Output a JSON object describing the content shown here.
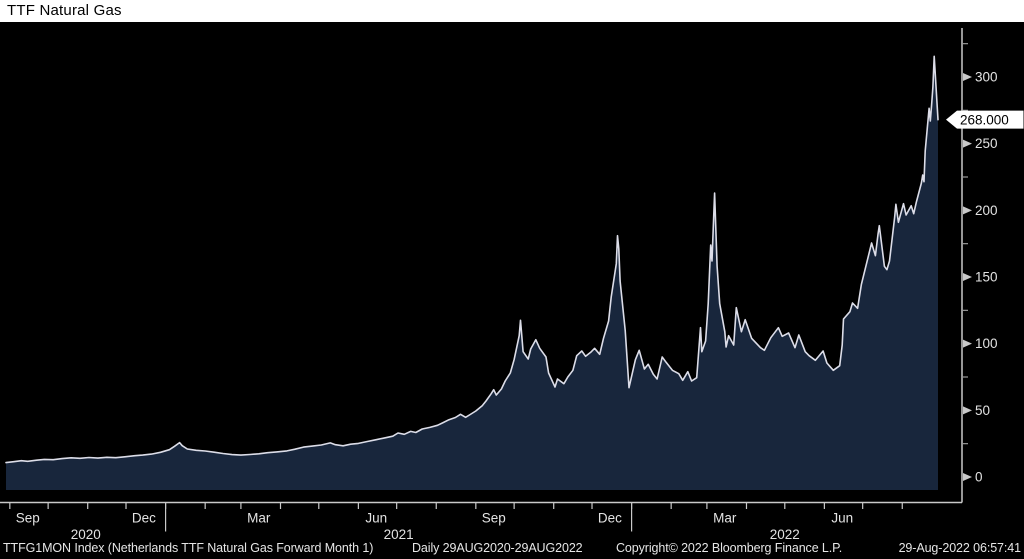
{
  "title": "TTF Natural Gas",
  "footer": {
    "left": "TTFG1MON Index (Netherlands TTF Natural Gas Forward Month 1)",
    "range": "Daily 29AUG2020-29AUG2022",
    "copyright": "Copyright© 2022 Bloomberg Finance L.P.",
    "timestamp": "29-Aug-2022 06:57:41"
  },
  "last_price": {
    "text": "268.000",
    "value": 268.0
  },
  "colors": {
    "background": "#000000",
    "title_bar_bg": "#ffffff",
    "title_text": "#000000",
    "area_fill": "#18263c",
    "line": "#dcdde8",
    "axis": "#c9c9c9",
    "minor_tick": "#9a9a9a",
    "tick_text": "#e2e2e2",
    "price_tag_bg": "#ffffff",
    "price_tag_text": "#000000"
  },
  "chart_data": {
    "type": "area",
    "title": "TTF Natural Gas",
    "x_range": [
      "2020-08-29",
      "2022-08-29"
    ],
    "ylim": [
      -10,
      335
    ],
    "yticks": [
      0,
      50,
      100,
      150,
      200,
      250,
      300
    ],
    "y_minor_ticks": [
      25,
      75,
      125,
      175,
      225,
      275,
      325
    ],
    "grid": false,
    "legend": "none",
    "axis_position": "right",
    "x_axis": {
      "month_labels": [
        {
          "at": "2020-09-15",
          "text": "Sep"
        },
        {
          "at": "2020-12-15",
          "text": "Dec"
        },
        {
          "at": "2021-03-15",
          "text": "Mar"
        },
        {
          "at": "2021-06-15",
          "text": "Jun"
        },
        {
          "at": "2021-09-15",
          "text": "Sep"
        },
        {
          "at": "2021-12-15",
          "text": "Dec"
        },
        {
          "at": "2022-03-15",
          "text": "Mar"
        },
        {
          "at": "2022-06-15",
          "text": "Jun"
        }
      ],
      "year_labels": [
        {
          "between": [
            "2020-08-29",
            "2021-01-01"
          ],
          "text": "2020"
        },
        {
          "between": [
            "2021-01-01",
            "2022-01-01"
          ],
          "text": "2021"
        },
        {
          "between": [
            "2022-01-01",
            "2022-08-29"
          ],
          "text": "2022"
        }
      ],
      "year_boundaries": [
        "2021-01-01",
        "2022-01-01"
      ]
    },
    "series": [
      {
        "name": "TTFG1MON Index",
        "last_value": 268.0,
        "points": [
          [
            "2020-08-29",
            10.8
          ],
          [
            "2020-09-04",
            11.5
          ],
          [
            "2020-09-10",
            12.2
          ],
          [
            "2020-09-15",
            11.8
          ],
          [
            "2020-09-22",
            12.6
          ],
          [
            "2020-09-28",
            13.2
          ],
          [
            "2020-10-05",
            13.0
          ],
          [
            "2020-10-12",
            13.8
          ],
          [
            "2020-10-19",
            14.4
          ],
          [
            "2020-10-26",
            14.0
          ],
          [
            "2020-11-02",
            14.6
          ],
          [
            "2020-11-09",
            14.2
          ],
          [
            "2020-11-16",
            14.8
          ],
          [
            "2020-11-23",
            14.5
          ],
          [
            "2020-12-01",
            15.2
          ],
          [
            "2020-12-08",
            16.0
          ],
          [
            "2020-12-14",
            16.4
          ],
          [
            "2020-12-21",
            17.2
          ],
          [
            "2020-12-28",
            18.5
          ],
          [
            "2021-01-04",
            20.5
          ],
          [
            "2021-01-08",
            23.0
          ],
          [
            "2021-01-12",
            25.8
          ],
          [
            "2021-01-14",
            23.5
          ],
          [
            "2021-01-18",
            21.0
          ],
          [
            "2021-01-25",
            20.0
          ],
          [
            "2021-02-01",
            19.5
          ],
          [
            "2021-02-08",
            18.6
          ],
          [
            "2021-02-15",
            17.6
          ],
          [
            "2021-02-22",
            16.8
          ],
          [
            "2021-03-01",
            16.4
          ],
          [
            "2021-03-08",
            16.9
          ],
          [
            "2021-03-15",
            17.4
          ],
          [
            "2021-03-22",
            18.2
          ],
          [
            "2021-03-29",
            18.8
          ],
          [
            "2021-04-06",
            19.6
          ],
          [
            "2021-04-12",
            20.8
          ],
          [
            "2021-04-19",
            22.4
          ],
          [
            "2021-04-26",
            23.2
          ],
          [
            "2021-05-03",
            24.0
          ],
          [
            "2021-05-10",
            25.6
          ],
          [
            "2021-05-14",
            24.2
          ],
          [
            "2021-05-20",
            23.4
          ],
          [
            "2021-05-26",
            24.6
          ],
          [
            "2021-06-01",
            25.2
          ],
          [
            "2021-06-08",
            26.6
          ],
          [
            "2021-06-15",
            28.0
          ],
          [
            "2021-06-22",
            29.4
          ],
          [
            "2021-06-28",
            30.6
          ],
          [
            "2021-07-02",
            33.0
          ],
          [
            "2021-07-07",
            32.0
          ],
          [
            "2021-07-12",
            34.2
          ],
          [
            "2021-07-16",
            33.4
          ],
          [
            "2021-07-21",
            36.0
          ],
          [
            "2021-07-27",
            37.2
          ],
          [
            "2021-08-02",
            38.8
          ],
          [
            "2021-08-06",
            40.6
          ],
          [
            "2021-08-11",
            43.0
          ],
          [
            "2021-08-16",
            44.6
          ],
          [
            "2021-08-20",
            47.0
          ],
          [
            "2021-08-24",
            44.8
          ],
          [
            "2021-08-27",
            46.5
          ],
          [
            "2021-09-01",
            49.5
          ],
          [
            "2021-09-06",
            53.5
          ],
          [
            "2021-09-09",
            57.0
          ],
          [
            "2021-09-13",
            62.5
          ],
          [
            "2021-09-15",
            65.5
          ],
          [
            "2021-09-17",
            61.5
          ],
          [
            "2021-09-21",
            66.0
          ],
          [
            "2021-09-24",
            72.0
          ],
          [
            "2021-09-28",
            78.0
          ],
          [
            "2021-10-01",
            88.0
          ],
          [
            "2021-10-05",
            106.0
          ],
          [
            "2021-10-06",
            117.5
          ],
          [
            "2021-10-08",
            94.0
          ],
          [
            "2021-10-12",
            88.5
          ],
          [
            "2021-10-14",
            96.0
          ],
          [
            "2021-10-18",
            103.0
          ],
          [
            "2021-10-21",
            96.5
          ],
          [
            "2021-10-26",
            90.0
          ],
          [
            "2021-10-28",
            78.0
          ],
          [
            "2021-11-02",
            67.5
          ],
          [
            "2021-11-04",
            73.5
          ],
          [
            "2021-11-09",
            70.0
          ],
          [
            "2021-11-12",
            75.0
          ],
          [
            "2021-11-16",
            80.0
          ],
          [
            "2021-11-19",
            91.0
          ],
          [
            "2021-11-23",
            94.5
          ],
          [
            "2021-11-26",
            90.5
          ],
          [
            "2021-11-30",
            93.5
          ],
          [
            "2021-12-03",
            96.5
          ],
          [
            "2021-12-07",
            92.0
          ],
          [
            "2021-12-10",
            104.0
          ],
          [
            "2021-12-14",
            117.0
          ],
          [
            "2021-12-16",
            135.0
          ],
          [
            "2021-12-20",
            160.0
          ],
          [
            "2021-12-21",
            181.0
          ],
          [
            "2021-12-22",
            171.0
          ],
          [
            "2021-12-23",
            147.0
          ],
          [
            "2021-12-27",
            110.0
          ],
          [
            "2021-12-30",
            67.0
          ],
          [
            "2022-01-04",
            88.0
          ],
          [
            "2022-01-07",
            95.0
          ],
          [
            "2022-01-11",
            81.0
          ],
          [
            "2022-01-14",
            84.5
          ],
          [
            "2022-01-18",
            77.0
          ],
          [
            "2022-01-21",
            73.5
          ],
          [
            "2022-01-25",
            90.0
          ],
          [
            "2022-01-28",
            86.0
          ],
          [
            "2022-02-02",
            80.0
          ],
          [
            "2022-02-07",
            77.5
          ],
          [
            "2022-02-10",
            72.5
          ],
          [
            "2022-02-14",
            79.0
          ],
          [
            "2022-02-17",
            72.0
          ],
          [
            "2022-02-21",
            74.5
          ],
          [
            "2022-02-24",
            112.0
          ],
          [
            "2022-02-25",
            94.0
          ],
          [
            "2022-02-28",
            102.0
          ],
          [
            "2022-03-02",
            130.0
          ],
          [
            "2022-03-04",
            174.0
          ],
          [
            "2022-03-05",
            162.0
          ],
          [
            "2022-03-07",
            213.0
          ],
          [
            "2022-03-09",
            158.0
          ],
          [
            "2022-03-11",
            130.0
          ],
          [
            "2022-03-15",
            109.0
          ],
          [
            "2022-03-16",
            97.5
          ],
          [
            "2022-03-18",
            106.0
          ],
          [
            "2022-03-22",
            99.0
          ],
          [
            "2022-03-24",
            127.0
          ],
          [
            "2022-03-28",
            109.0
          ],
          [
            "2022-03-31",
            118.0
          ],
          [
            "2022-04-05",
            104.0
          ],
          [
            "2022-04-08",
            101.0
          ],
          [
            "2022-04-12",
            97.0
          ],
          [
            "2022-04-15",
            95.0
          ],
          [
            "2022-04-20",
            104.5
          ],
          [
            "2022-04-26",
            112.0
          ],
          [
            "2022-04-29",
            105.5
          ],
          [
            "2022-05-04",
            108.0
          ],
          [
            "2022-05-09",
            97.0
          ],
          [
            "2022-05-12",
            106.5
          ],
          [
            "2022-05-17",
            94.0
          ],
          [
            "2022-05-20",
            91.0
          ],
          [
            "2022-05-25",
            87.5
          ],
          [
            "2022-05-31",
            94.5
          ],
          [
            "2022-06-03",
            85.5
          ],
          [
            "2022-06-08",
            80.0
          ],
          [
            "2022-06-13",
            83.5
          ],
          [
            "2022-06-15",
            99.0
          ],
          [
            "2022-06-16",
            118.5
          ],
          [
            "2022-06-21",
            124.0
          ],
          [
            "2022-06-23",
            130.5
          ],
          [
            "2022-06-27",
            126.5
          ],
          [
            "2022-06-30",
            144.5
          ],
          [
            "2022-07-04",
            160.0
          ],
          [
            "2022-07-08",
            175.5
          ],
          [
            "2022-07-11",
            166.0
          ],
          [
            "2022-07-13",
            182.0
          ],
          [
            "2022-07-14",
            188.5
          ],
          [
            "2022-07-18",
            158.0
          ],
          [
            "2022-07-20",
            155.5
          ],
          [
            "2022-07-22",
            162.0
          ],
          [
            "2022-07-26",
            194.5
          ],
          [
            "2022-07-27",
            204.5
          ],
          [
            "2022-07-29",
            191.0
          ],
          [
            "2022-08-02",
            205.0
          ],
          [
            "2022-08-04",
            196.5
          ],
          [
            "2022-08-08",
            203.5
          ],
          [
            "2022-08-10",
            197.5
          ],
          [
            "2022-08-12",
            206.0
          ],
          [
            "2022-08-16",
            220.5
          ],
          [
            "2022-08-17",
            226.5
          ],
          [
            "2022-08-18",
            221.5
          ],
          [
            "2022-08-19",
            244.5
          ],
          [
            "2022-08-22",
            276.5
          ],
          [
            "2022-08-23",
            267.0
          ],
          [
            "2022-08-24",
            279.0
          ],
          [
            "2022-08-25",
            292.5
          ],
          [
            "2022-08-26",
            315.5
          ],
          [
            "2022-08-29",
            268.0
          ]
        ]
      }
    ]
  }
}
